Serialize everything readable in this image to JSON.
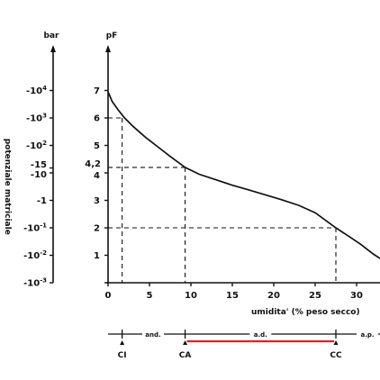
{
  "chart_data": {
    "type": "line",
    "left_axis": {
      "unit": "bar",
      "title": "potenziale matriciale",
      "ticks": [
        {
          "label": "-10",
          "exp": "4",
          "pF": 7
        },
        {
          "label": "-10",
          "exp": "3",
          "pF": 6
        },
        {
          "label": "-10",
          "exp": "2",
          "pF": 5
        },
        {
          "label": "-15",
          "exp": "",
          "pF": 4.18
        },
        {
          "label": "-10",
          "exp": "",
          "pF": 4
        },
        {
          "label": "-1",
          "exp": "",
          "pF": 3
        },
        {
          "label": "-10",
          "exp": "-1",
          "pF": 2
        },
        {
          "label": "-10",
          "exp": "-2",
          "pF": 1
        },
        {
          "label": "-10",
          "exp": "-3",
          "pF": 0
        }
      ]
    },
    "pf_axis": {
      "unit": "pF",
      "ylim": [
        0,
        7
      ],
      "ticks": [
        "0",
        "1",
        "2",
        "3",
        "4",
        "5",
        "6",
        "7"
      ],
      "extra_tick": {
        "label": "4,2",
        "value": 4.2
      }
    },
    "x_axis": {
      "label": "umidita' (% peso secco)",
      "xlim": [
        0,
        33
      ],
      "ticks": [
        "0",
        "5",
        "10",
        "15",
        "20",
        "25",
        "30"
      ]
    },
    "curve": {
      "x": [
        0,
        0.5,
        1.2,
        2,
        3,
        4.5,
        6,
        7.5,
        9.3,
        11,
        13,
        15,
        17,
        19,
        21,
        23,
        25,
        27.5,
        29,
        30.5,
        32,
        33
      ],
      "y": [
        6.95,
        6.6,
        6.3,
        6.0,
        5.7,
        5.3,
        4.95,
        4.6,
        4.2,
        3.95,
        3.75,
        3.55,
        3.38,
        3.2,
        3.02,
        2.82,
        2.55,
        2.0,
        1.7,
        1.4,
        1.05,
        0.85
      ]
    },
    "reference_lines": [
      {
        "x": 1.7,
        "y": 6.0
      },
      {
        "x": 9.3,
        "y": 4.2
      },
      {
        "x": 27.5,
        "y": 2.0
      }
    ],
    "water_classes": [
      {
        "label": "and.",
        "from": 0,
        "to": 9.3
      },
      {
        "label": "a.d.",
        "from": 9.3,
        "to": 27.5
      },
      {
        "label": "a.p.",
        "from": 27.5,
        "to": 33
      }
    ],
    "points": [
      {
        "label": "CI",
        "x": 1.7
      },
      {
        "label": "CA",
        "x": 9.3
      },
      {
        "label": "CC",
        "x": 27.5
      }
    ],
    "colors": {
      "ink": "#111111",
      "highlight": "#e02020"
    }
  }
}
